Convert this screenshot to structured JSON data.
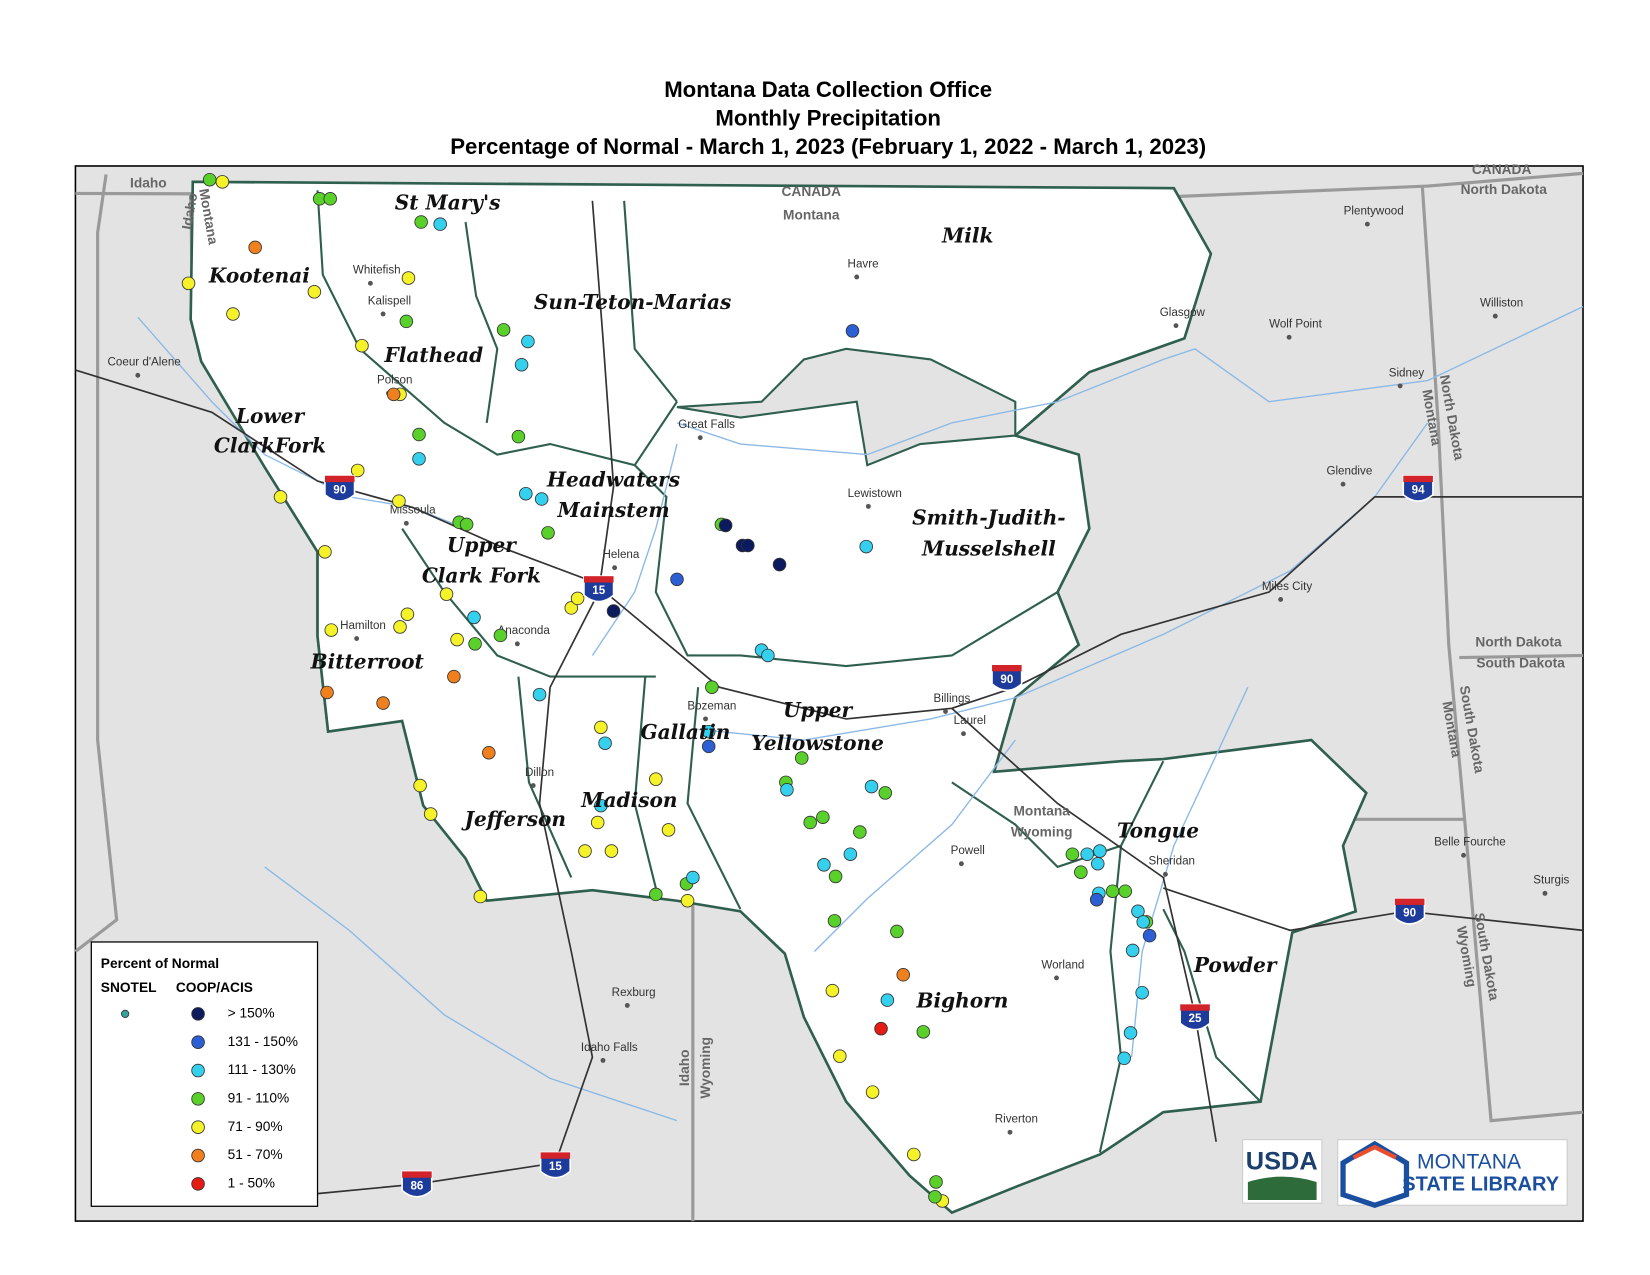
{
  "title": [
    "Montana Data Collection Office",
    "Monthly Precipitation",
    "Percentage of Normal - March 1, 2023 (February 1, 2022 - March 1, 2023)"
  ],
  "basins": [
    [
      "Kootenai"
    ],
    [
      "St Mary's"
    ],
    [
      "Flathead"
    ],
    [
      "Sun-Teton-Marias"
    ],
    [
      "Milk"
    ],
    [
      "Lower",
      "ClarkFork"
    ],
    [
      "Headwaters",
      "Mainstem"
    ],
    [
      "Upper",
      "Clark Fork"
    ],
    [
      "Smith-Judith-",
      "Musselshell"
    ],
    [
      "Bitterroot"
    ],
    [
      "Gallatin"
    ],
    [
      "Upper",
      "Yellowstone"
    ],
    [
      "Madison"
    ],
    [
      "Jefferson"
    ],
    [
      "Tongue"
    ],
    [
      "Bighorn"
    ],
    [
      "Powder"
    ]
  ],
  "places": [
    "Whitefish",
    "Kalispell",
    "Polson",
    "Missoula",
    "Hamilton",
    "Anaconda",
    "Helena",
    "Great Falls",
    "Havre",
    "Glasgow",
    "Lewistown",
    "Bozeman",
    "Billings",
    "Laurel",
    "Dillon",
    "Plentywood",
    "Wolf Point",
    "Williston",
    "Sidney",
    "Glendive",
    "Miles City",
    "Belle Fourche",
    "Sturgis",
    "Powell",
    "Sheridan",
    "Worland",
    "Riverton",
    "Rexburg",
    "Idaho Falls",
    "Coeur d'Alene"
  ],
  "regions": [
    "Idaho",
    "CANADA",
    "Montana",
    "CANADA",
    "North Dakota",
    "North Dakota",
    "South Dakota",
    "Montana",
    "Wyoming",
    "Idaho",
    "Montana",
    "North Dakota",
    "Montana",
    "South Dakota",
    "Montana",
    "Wyoming",
    "South Dakota",
    "Idaho",
    "Wyoming"
  ],
  "highways": [
    "90",
    "15",
    "94",
    "90",
    "90",
    "25",
    "15",
    "86"
  ],
  "legend": {
    "title": "Percent of Normal",
    "columns": [
      "SNOTEL",
      "COOP/ACIS"
    ],
    "classes": [
      {
        "label": "> 150%",
        "color": "#0b1b5e"
      },
      {
        "label": "131 - 150%",
        "color": "#2c5fd4"
      },
      {
        "label": "111 - 130%",
        "color": "#35d0ee"
      },
      {
        "label": "91 - 110%",
        "color": "#5ad12b"
      },
      {
        "label": "71 - 90%",
        "color": "#f6f22a"
      },
      {
        "label": "51 - 70%",
        "color": "#f07f1e"
      },
      {
        "label": "1 - 50%",
        "color": "#e51b14"
      }
    ]
  },
  "logos": [
    "USDA",
    "MONTANA",
    "STATE LIBRARY"
  ]
}
